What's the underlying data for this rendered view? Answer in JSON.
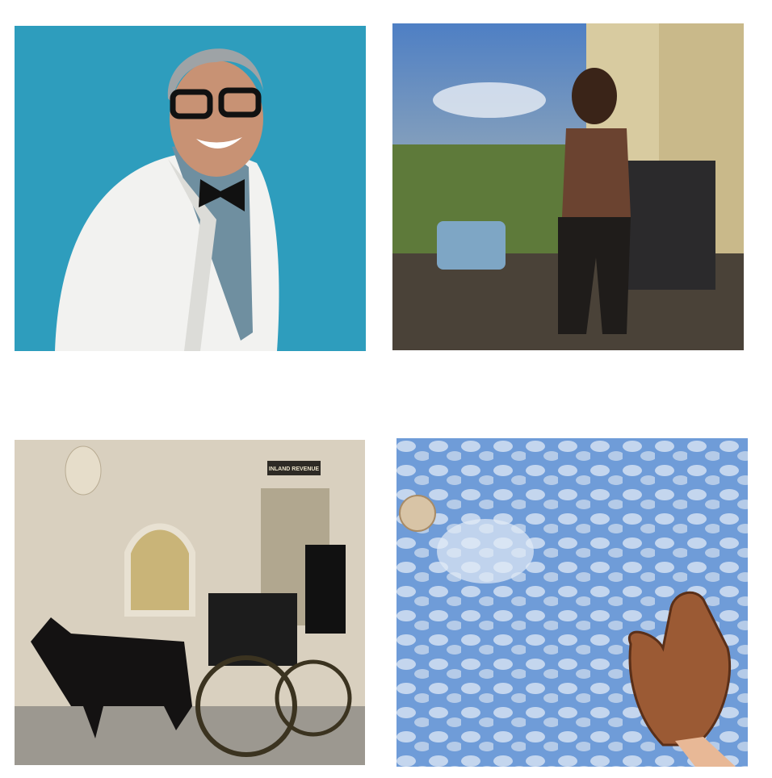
{
  "grid": {
    "carriage_tile": {
      "sign": "INLAND REVENUE"
    }
  }
}
